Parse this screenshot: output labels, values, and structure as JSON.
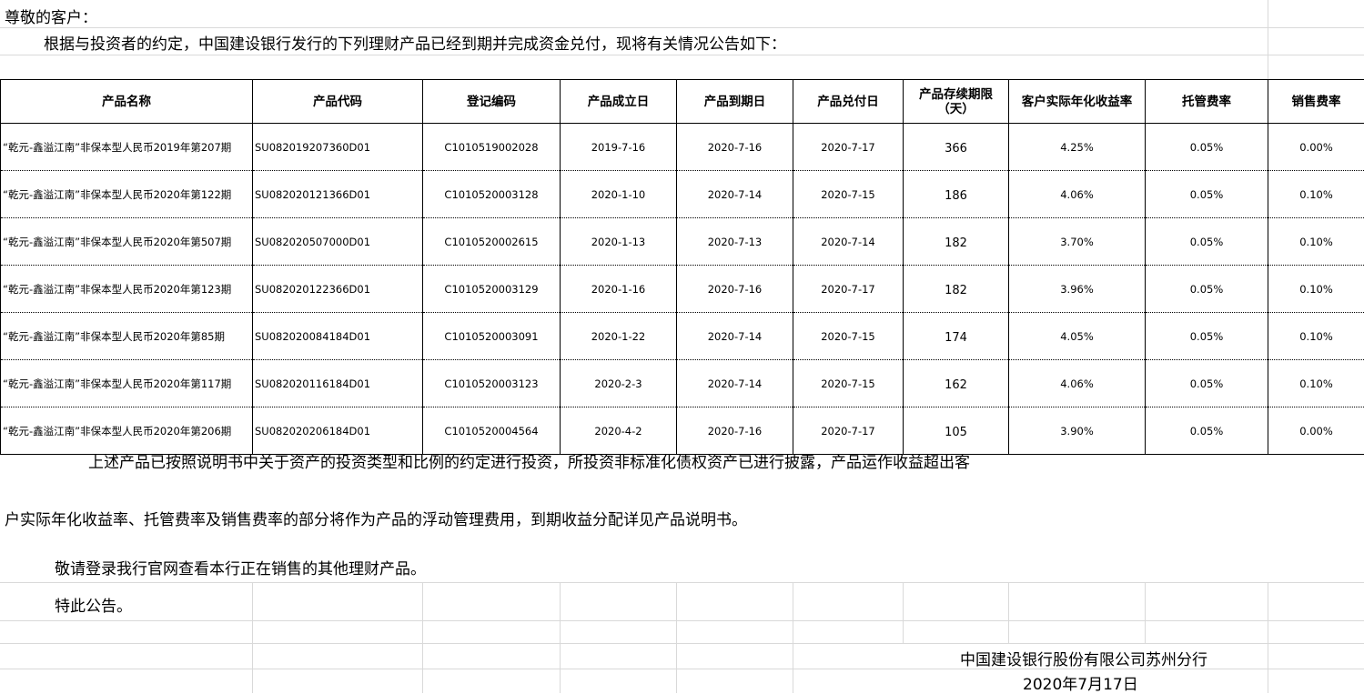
{
  "greeting": "尊敬的客户：",
  "intro": "根据与投资者的约定，中国建设银行发行的下列理财产品已经到期并完成资金兑付，现将有关情况公告如下：",
  "table": {
    "headers": [
      "产品名称",
      "产品代码",
      "登记编码",
      "产品成立日",
      "产品到期日",
      "产品兑付日",
      "产品存续期限（天）",
      "客户实际年化收益率",
      "托管费率",
      "销售费率"
    ],
    "rows": [
      [
        "“乾元-鑫溢江南”非保本型人民币2019年第207期",
        "SU082019207360D01",
        "C1010519002028",
        "2019-7-16",
        "2020-7-16",
        "2020-7-17",
        "366",
        "4.25%",
        "0.05%",
        "0.00%"
      ],
      [
        "“乾元-鑫溢江南”非保本型人民币2020年第122期",
        "SU082020121366D01",
        "C1010520003128",
        "2020-1-10",
        "2020-7-14",
        "2020-7-15",
        "186",
        "4.06%",
        "0.05%",
        "0.10%"
      ],
      [
        "“乾元-鑫溢江南”非保本型人民币2020年第507期",
        "SU082020507000D01",
        "C1010520002615",
        "2020-1-13",
        "2020-7-13",
        "2020-7-14",
        "182",
        "3.70%",
        "0.05%",
        "0.10%"
      ],
      [
        "“乾元-鑫溢江南”非保本型人民币2020年第123期",
        "SU082020122366D01",
        "C1010520003129",
        "2020-1-16",
        "2020-7-16",
        "2020-7-17",
        "182",
        "3.96%",
        "0.05%",
        "0.10%"
      ],
      [
        "“乾元-鑫溢江南”非保本型人民币2020年第85期",
        "SU082020084184D01",
        "C1010520003091",
        "2020-1-22",
        "2020-7-14",
        "2020-7-15",
        "174",
        "4.05%",
        "0.05%",
        "0.10%"
      ],
      [
        "“乾元-鑫溢江南”非保本型人民币2020年第117期",
        "SU082020116184D01",
        "C1010520003123",
        "2020-2-3",
        "2020-7-14",
        "2020-7-15",
        "162",
        "4.06%",
        "0.05%",
        "0.10%"
      ],
      [
        "“乾元-鑫溢江南”非保本型人民币2020年第206期",
        "SU082020206184D01",
        "C1010520004564",
        "2020-4-2",
        "2020-7-16",
        "2020-7-17",
        "105",
        "3.90%",
        "0.05%",
        "0.00%"
      ]
    ]
  },
  "para1_line1": "上述产品已按照说明书中关于资产的投资类型和比例的约定进行投资，所投资非标准化债权资产已进行披露，产品运作收益超出客",
  "para1_line2": "户实际年化收益率、托管费率及销售费率的部分将作为产品的浮动管理费用，到期收益分配详见产品说明书。",
  "para2": "敬请登录我行官网查看本行正在销售的其他理财产品。",
  "para3": "特此公告。",
  "signature": "中国建设银行股份有限公司苏州分行",
  "date": "2020年7月17日"
}
